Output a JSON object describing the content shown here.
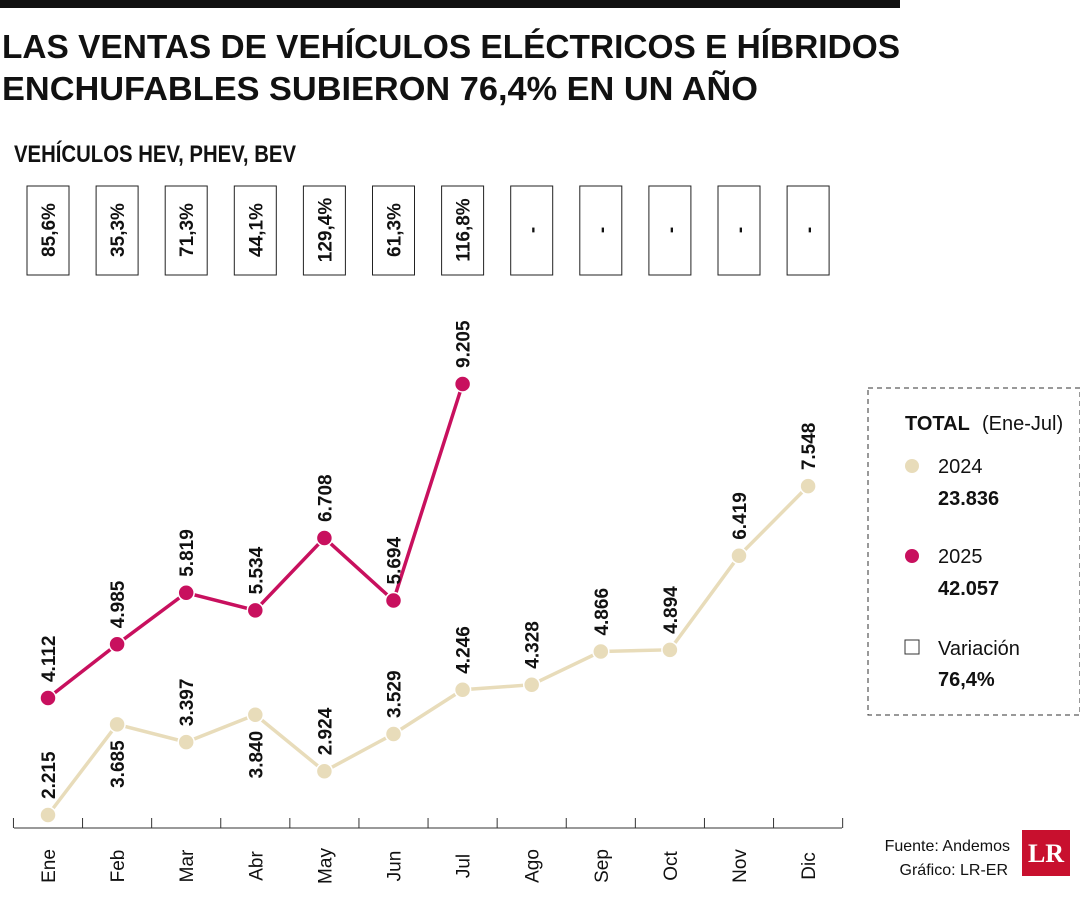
{
  "chart_data": {
    "type": "line",
    "title": [
      "LAS VENTAS DE VEHÍCULOS ELÉCTRICOS E HÍBRIDOS",
      "ENCHUFABLES SUBIERON 76,4% EN UN AÑO"
    ],
    "subtitle": "VEHÍCULOS HEV, PHEV, BEV",
    "categories": [
      "Ene",
      "Feb",
      "Mar",
      "Abr",
      "May",
      "Jun",
      "Jul",
      "Ago",
      "Sep",
      "Oct",
      "Nov",
      "Dic"
    ],
    "variation_labels": [
      "85,6%",
      "35,3%",
      "71,3%",
      "44,1%",
      "129,4%",
      "61,3%",
      "116,8%",
      "-",
      "-",
      "-",
      "-",
      "-"
    ],
    "series": [
      {
        "name": "2024",
        "color": "#e8dcba",
        "total": "23.836",
        "values": [
          2215,
          3685,
          3397,
          3840,
          2924,
          3529,
          4246,
          4328,
          4866,
          4894,
          6419,
          7548
        ],
        "value_labels": [
          "2.215",
          "3.685",
          "3.397",
          "3.840",
          "2.924",
          "3.529",
          "4.246",
          "4.328",
          "4.866",
          "4.894",
          "6.419",
          "7.548"
        ]
      },
      {
        "name": "2025",
        "color": "#c8105e",
        "total": "42.057",
        "values": [
          4112,
          4985,
          5819,
          5534,
          6708,
          5694,
          9205,
          null,
          null,
          null,
          null,
          null
        ],
        "value_labels": [
          "4.112",
          "4.985",
          "5.819",
          "5.534",
          "6.708",
          "5.694",
          "9.205",
          null,
          null,
          null,
          null,
          null
        ]
      }
    ],
    "legend": {
      "title": "TOTAL",
      "period": "(Ene-Jul)",
      "variation_name": "Variación",
      "variation_total": "76,4%"
    },
    "source": "Fuente: Andemos",
    "credit": "Gráfico: LR-ER",
    "logo": "LR"
  }
}
